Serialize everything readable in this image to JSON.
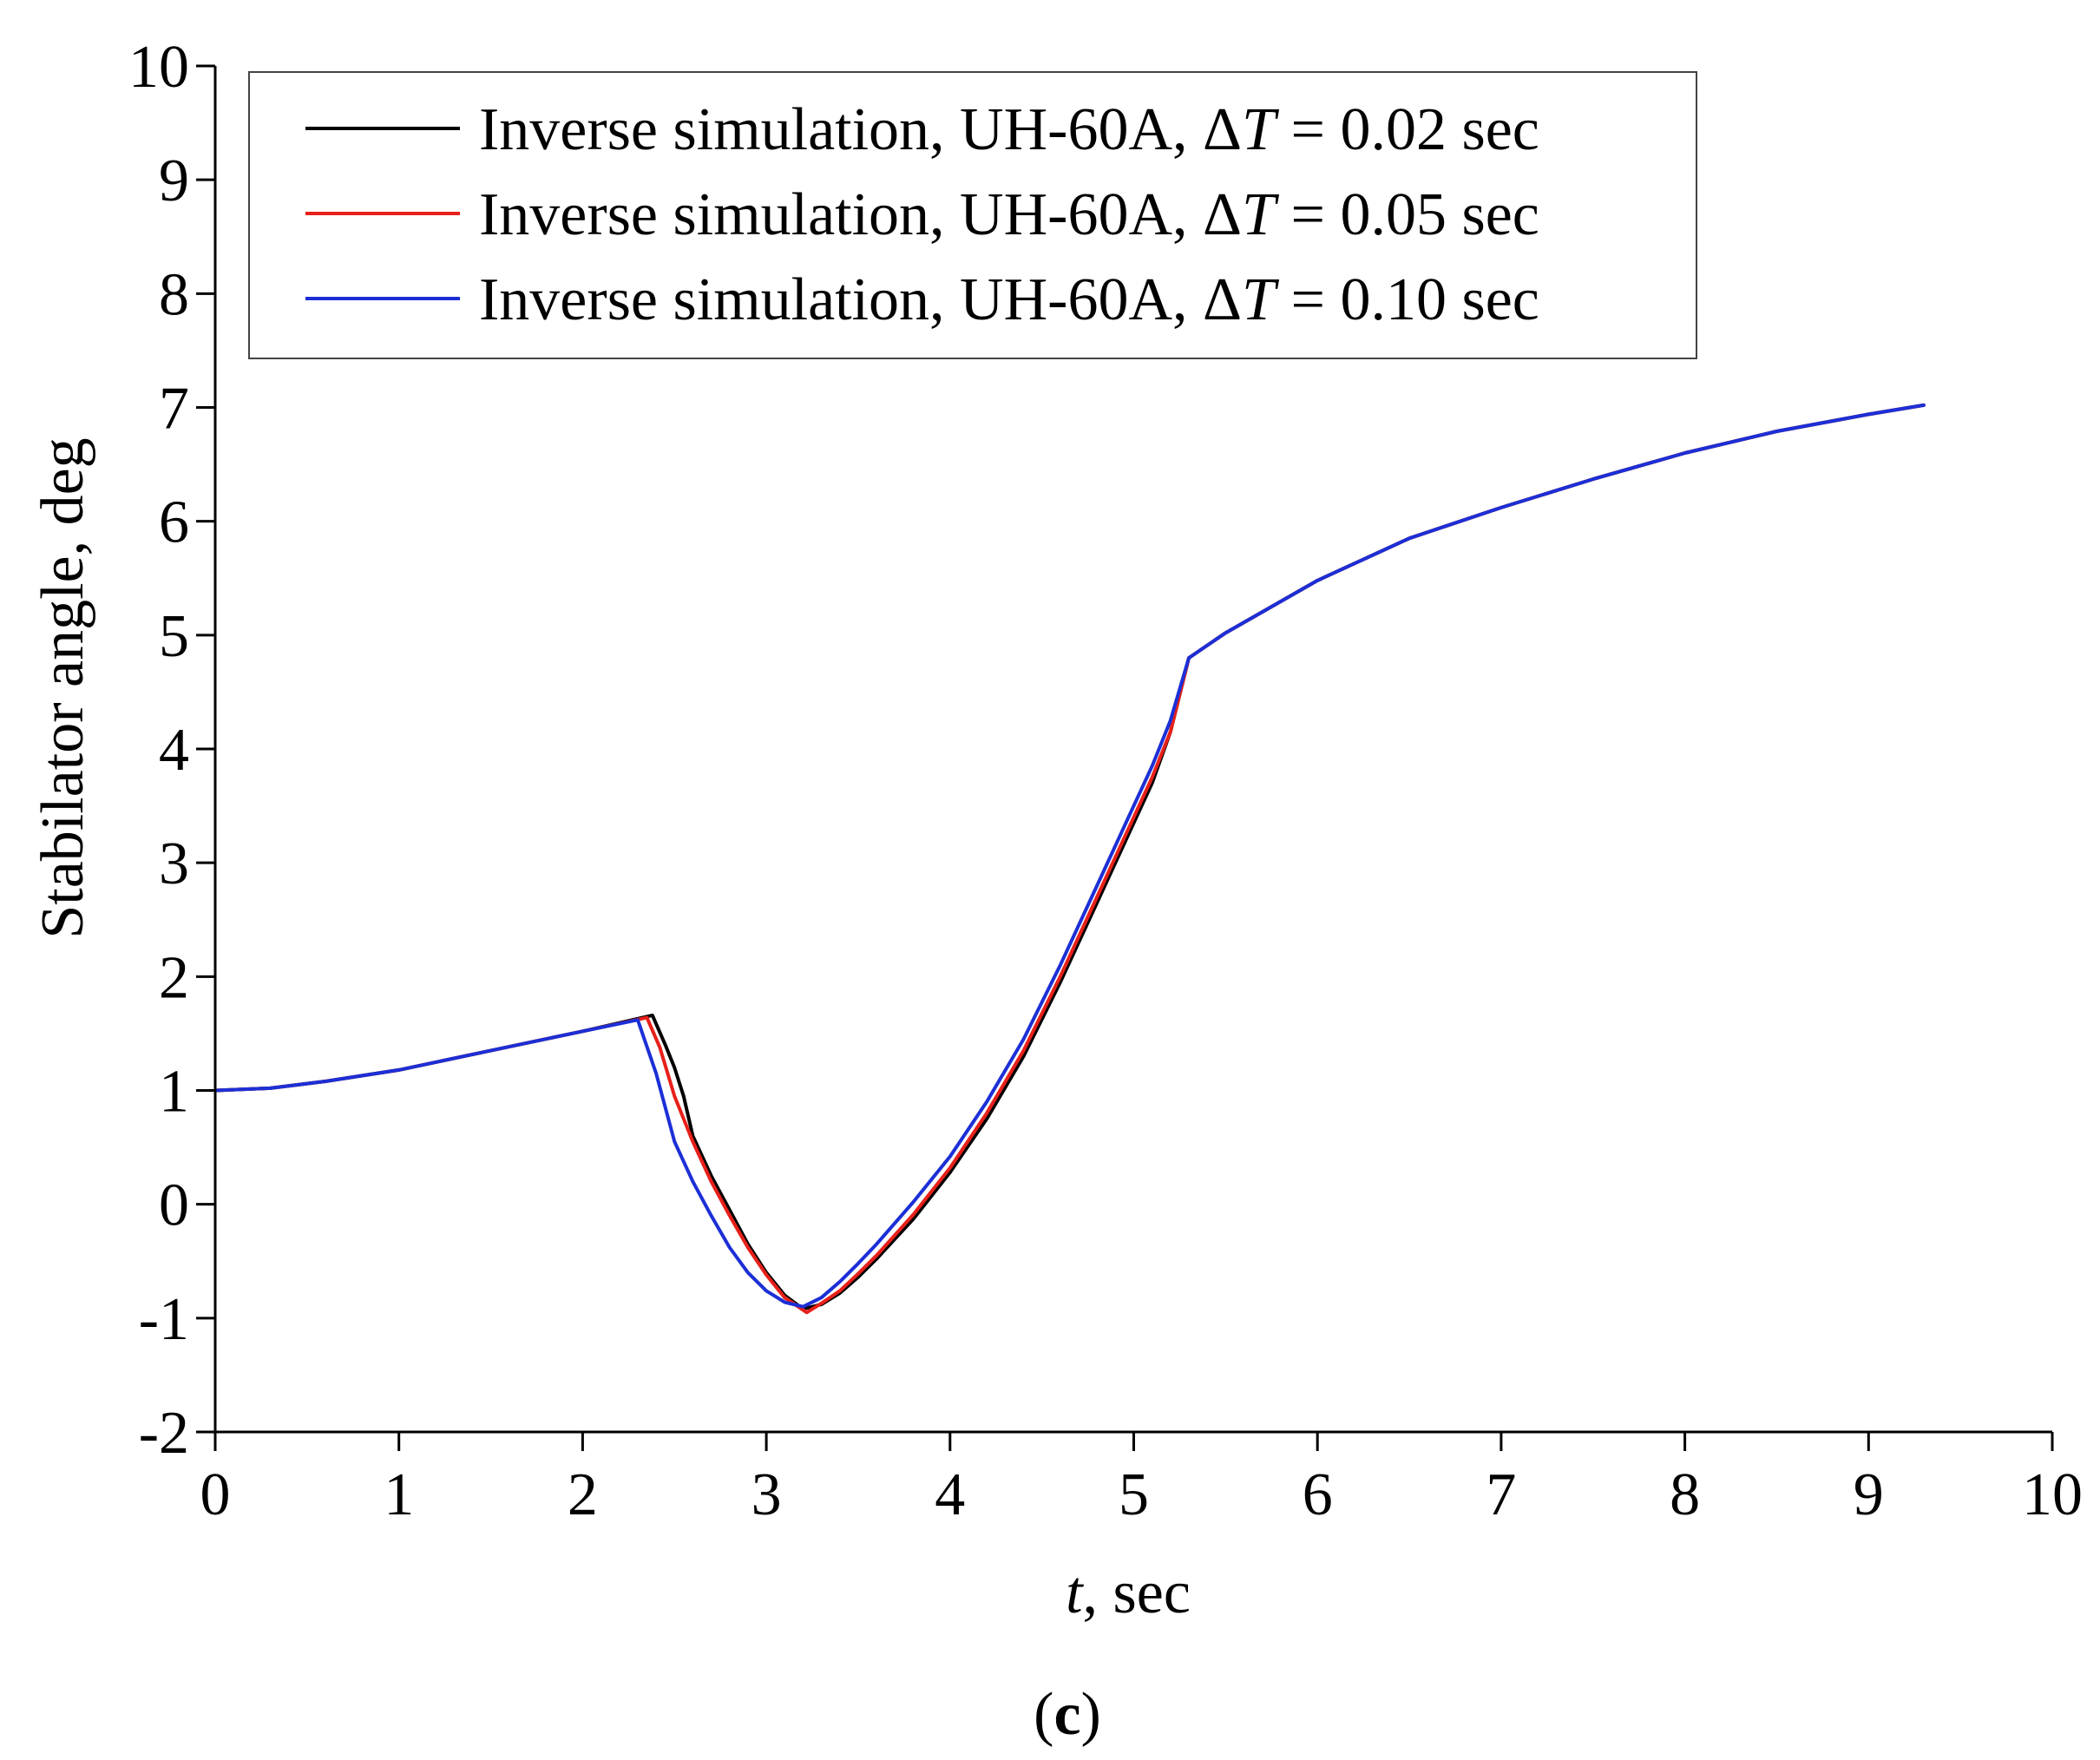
{
  "chart_data": {
    "type": "line",
    "title": "",
    "xlabel": {
      "italic": "t",
      "rest": ", sec"
    },
    "ylabel": "Stabilator angle, deg",
    "xlim": [
      0,
      10
    ],
    "ylim": [
      -2,
      10
    ],
    "xticks": [
      "0",
      "1",
      "2",
      "3",
      "4",
      "5",
      "6",
      "7",
      "8",
      "9",
      "10"
    ],
    "yticks": [
      "-2",
      "-1",
      "0",
      "1",
      "2",
      "3",
      "4",
      "5",
      "6",
      "7",
      "8",
      "9",
      "10"
    ],
    "grid": false,
    "legend_position": "top-left",
    "series": [
      {
        "name": "Inverse simulation, UH-60A, ΔT = 0.02 sec",
        "legend_parts": {
          "prefix": "Inverse simulation, UH-60A, Δ",
          "italic": "T",
          "suffix": " = 0.02 sec"
        },
        "color": "#000000",
        "x": [
          0,
          0.3,
          0.6,
          1.0,
          1.5,
          2.0,
          2.38,
          2.45,
          2.5,
          2.55,
          2.6,
          2.7,
          2.8,
          2.9,
          3.0,
          3.1,
          3.2,
          3.3,
          3.4,
          3.5,
          3.6,
          3.8,
          4.0,
          4.2,
          4.4,
          4.6,
          4.8,
          5.0,
          5.1,
          5.2,
          5.3,
          5.5,
          6.0,
          6.5,
          7.0,
          7.5,
          8.0,
          8.5,
          9.0,
          9.3
        ],
        "y": [
          1.0,
          1.02,
          1.08,
          1.18,
          1.35,
          1.52,
          1.66,
          1.4,
          1.2,
          0.95,
          0.6,
          0.25,
          -0.05,
          -0.35,
          -0.6,
          -0.8,
          -0.92,
          -0.88,
          -0.78,
          -0.64,
          -0.48,
          -0.13,
          0.28,
          0.75,
          1.3,
          1.95,
          2.65,
          3.35,
          3.7,
          4.15,
          4.8,
          5.02,
          5.48,
          5.85,
          6.12,
          6.37,
          6.6,
          6.79,
          6.94,
          7.02
        ]
      },
      {
        "name": "Inverse simulation, UH-60A, ΔT = 0.05 sec",
        "legend_parts": {
          "prefix": "Inverse simulation, UH-60A, Δ",
          "italic": "T",
          "suffix": " = 0.05 sec"
        },
        "color": "#e8201a",
        "x": [
          0,
          0.3,
          0.6,
          1.0,
          1.5,
          2.0,
          2.35,
          2.42,
          2.5,
          2.6,
          2.7,
          2.8,
          2.9,
          3.0,
          3.1,
          3.22,
          3.3,
          3.4,
          3.5,
          3.6,
          3.8,
          4.0,
          4.2,
          4.4,
          4.6,
          4.8,
          5.0,
          5.1,
          5.2,
          5.3,
          5.5,
          6.0,
          6.5,
          7.0,
          7.5,
          8.0,
          8.5,
          9.0,
          9.3
        ],
        "y": [
          1.0,
          1.02,
          1.08,
          1.18,
          1.35,
          1.52,
          1.64,
          1.38,
          0.95,
          0.55,
          0.2,
          -0.1,
          -0.38,
          -0.62,
          -0.82,
          -0.95,
          -0.87,
          -0.76,
          -0.61,
          -0.45,
          -0.09,
          0.32,
          0.8,
          1.35,
          2.0,
          2.7,
          3.4,
          3.75,
          4.15,
          4.8,
          5.02,
          5.48,
          5.85,
          6.12,
          6.37,
          6.6,
          6.79,
          6.94,
          7.02
        ]
      },
      {
        "name": "Inverse simulation, UH-60A, ΔT = 0.10 sec",
        "legend_parts": {
          "prefix": "Inverse simulation, UH-60A, Δ",
          "italic": "T",
          "suffix": " = 0.10 sec"
        },
        "color": "#1c2fd6",
        "x": [
          0,
          0.3,
          0.6,
          1.0,
          1.5,
          2.0,
          2.3,
          2.4,
          2.5,
          2.6,
          2.7,
          2.8,
          2.9,
          3.0,
          3.1,
          3.2,
          3.3,
          3.4,
          3.5,
          3.6,
          3.8,
          4.0,
          4.2,
          4.4,
          4.6,
          4.8,
          5.0,
          5.1,
          5.2,
          5.3,
          5.5,
          6.0,
          6.5,
          7.0,
          7.5,
          8.0,
          8.5,
          9.0,
          9.3
        ],
        "y": [
          1.0,
          1.02,
          1.08,
          1.18,
          1.35,
          1.52,
          1.62,
          1.15,
          0.55,
          0.2,
          -0.1,
          -0.38,
          -0.6,
          -0.76,
          -0.86,
          -0.9,
          -0.82,
          -0.68,
          -0.52,
          -0.35,
          0.02,
          0.42,
          0.9,
          1.45,
          2.1,
          2.8,
          3.5,
          3.85,
          4.25,
          4.8,
          5.02,
          5.48,
          5.85,
          6.12,
          6.37,
          6.6,
          6.79,
          6.94,
          7.02
        ]
      }
    ]
  },
  "caption": {
    "open": "(",
    "letter": "c",
    "close": ")"
  }
}
